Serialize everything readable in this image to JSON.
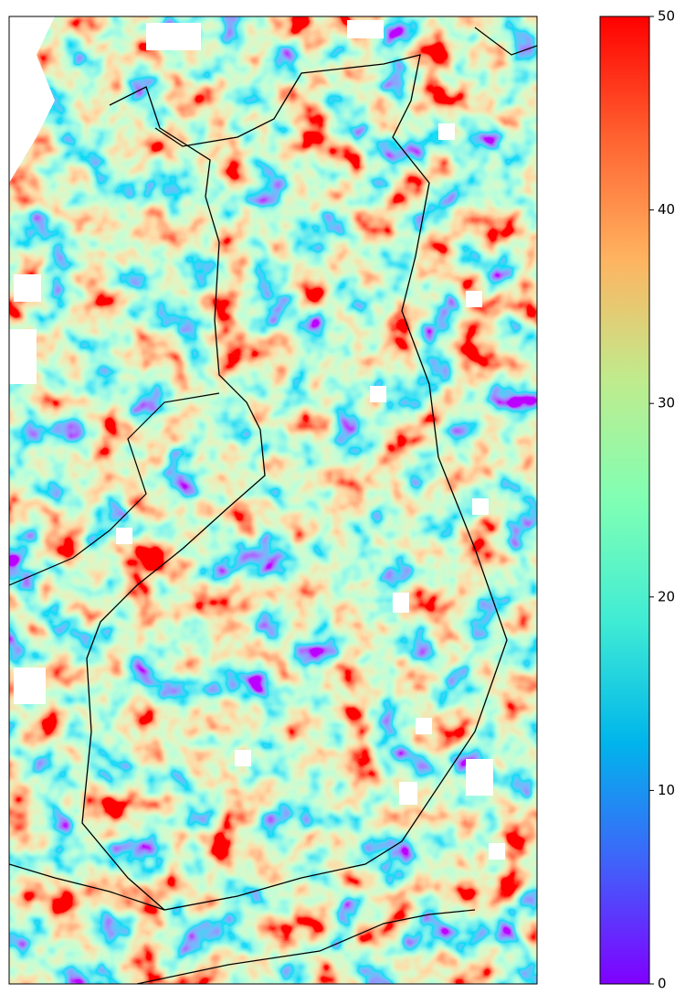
{
  "chart_data": {
    "type": "heatmap",
    "colorbar": {
      "lim": [
        0,
        50
      ],
      "ticks": [
        0,
        10,
        20,
        30,
        40,
        50
      ],
      "colormap": [
        "#8000ff",
        "#4062fa",
        "#00b5eb",
        "#40ecd4",
        "#80ffb4",
        "#c0eb8d",
        "#ffb360",
        "#ff6230",
        "#ff0000"
      ]
    }
  }
}
